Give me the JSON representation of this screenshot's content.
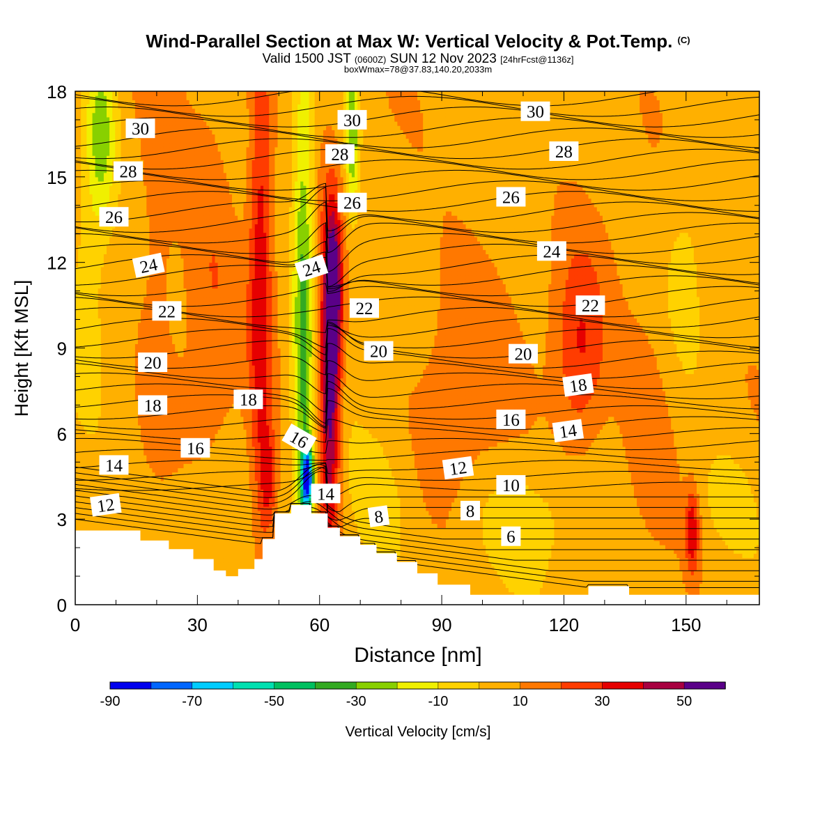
{
  "header": {
    "title": "Wind-Parallel Section at Max W: Vertical Velocity & Pot.Temp.",
    "copyright": "(C)",
    "valid_a": "Valid 1500 JST",
    "valid_zulu": "(0600Z)",
    "valid_b": "SUN 12 Nov 2023",
    "valid_fcst": "[24hrFcst@1136z]",
    "box_info": "boxWmax=78@37.83,140.20,2033m"
  },
  "chart_data": {
    "type": "heatmap",
    "xlabel": "Distance [nm]",
    "ylabel": "Height [Kft MSL]",
    "xlim": [
      0,
      168
    ],
    "ylim": [
      0,
      18
    ],
    "x_ticks": [
      "0",
      "30",
      "60",
      "90",
      "120",
      "150"
    ],
    "y_ticks": [
      "0",
      "3",
      "6",
      "9",
      "12",
      "15",
      "18"
    ],
    "x_tick_values": [
      0,
      30,
      60,
      90,
      120,
      150
    ],
    "y_tick_values": [
      0,
      3,
      6,
      9,
      12,
      15,
      18
    ],
    "colorbar": {
      "label": "Vertical Velocity [cm/s]",
      "tick_labels": [
        "-90",
        "-70",
        "-50",
        "-30",
        "-10",
        "10",
        "30",
        "50"
      ],
      "tick_values": [
        -90,
        -70,
        -50,
        -30,
        -10,
        10,
        30,
        50
      ],
      "bounds": [
        -90,
        -80,
        -70,
        -60,
        -50,
        -40,
        -30,
        -20,
        -10,
        0,
        10,
        20,
        30,
        40,
        50,
        60
      ],
      "colors": [
        "#0000ee",
        "#0066ff",
        "#00ccff",
        "#00e0b0",
        "#00c060",
        "#33aa22",
        "#88d000",
        "#f0f000",
        "#ffd200",
        "#ffb000",
        "#ff7800",
        "#ff3c00",
        "#e60000",
        "#a80040",
        "#5a0088"
      ]
    },
    "terrain": [
      [
        0,
        2.6
      ],
      [
        16,
        2.6
      ],
      [
        16,
        2.25
      ],
      [
        23,
        2.25
      ],
      [
        23,
        1.95
      ],
      [
        29,
        1.95
      ],
      [
        29,
        1.6
      ],
      [
        34,
        1.6
      ],
      [
        34,
        1.2
      ],
      [
        37,
        1.2
      ],
      [
        37,
        1.0
      ],
      [
        40,
        1.0
      ],
      [
        40,
        1.25
      ],
      [
        44,
        1.25
      ],
      [
        44,
        1.6
      ],
      [
        46,
        1.6
      ],
      [
        46,
        2.3
      ],
      [
        49,
        2.3
      ],
      [
        49,
        3.2
      ],
      [
        53,
        3.2
      ],
      [
        53,
        3.5
      ],
      [
        58,
        3.5
      ],
      [
        58,
        3.2
      ],
      [
        62,
        3.2
      ],
      [
        62,
        2.7
      ],
      [
        65,
        2.7
      ],
      [
        65,
        2.4
      ],
      [
        70,
        2.4
      ],
      [
        70,
        2.1
      ],
      [
        74,
        2.1
      ],
      [
        74,
        1.8
      ],
      [
        79,
        1.8
      ],
      [
        79,
        1.5
      ],
      [
        84,
        1.5
      ],
      [
        84,
        1.1
      ],
      [
        89,
        1.1
      ],
      [
        89,
        0.7
      ],
      [
        97,
        0.7
      ],
      [
        97,
        0.35
      ],
      [
        126,
        0.35
      ],
      [
        126,
        0.65
      ],
      [
        136,
        0.65
      ],
      [
        136,
        0.35
      ],
      [
        168,
        0.35
      ]
    ],
    "features": [
      {
        "type": "updraft",
        "x": 62.5,
        "y": 7.6,
        "sx": 1.8,
        "sy": 4.0,
        "amp": 52
      },
      {
        "type": "updraft",
        "x": 63.5,
        "y": 11.0,
        "sx": 1.4,
        "sy": 2.0,
        "amp": 38
      },
      {
        "type": "updraft",
        "x": 45.5,
        "y": 11.5,
        "sx": 2.0,
        "sy": 7.0,
        "amp": 30
      },
      {
        "type": "updraft",
        "x": 47.5,
        "y": 4.3,
        "sx": 1.4,
        "sy": 1.3,
        "amp": 22
      },
      {
        "type": "updraft",
        "x": 124,
        "y": 8.8,
        "sx": 4.5,
        "sy": 2.5,
        "amp": 25
      },
      {
        "type": "updraft",
        "x": 151.5,
        "y": 2.6,
        "sx": 1.2,
        "sy": 1.0,
        "amp": 32
      },
      {
        "type": "updraft",
        "x": 33,
        "y": 11.5,
        "sx": 5,
        "sy": 5,
        "amp": 12
      },
      {
        "type": "updraft",
        "x": 95,
        "y": 8.0,
        "sx": 8,
        "sy": 3.5,
        "amp": 12
      },
      {
        "type": "updraft",
        "x": 140,
        "y": 6.5,
        "sx": 5,
        "sy": 3,
        "amp": 10
      },
      {
        "type": "updraft",
        "x": 20,
        "y": 13.5,
        "sx": 3.5,
        "sy": 5,
        "amp": 10
      },
      {
        "type": "downdraft",
        "x": 56.0,
        "y": 10.0,
        "sx": 1.8,
        "sy": 6.5,
        "amp": -40
      },
      {
        "type": "downdraft",
        "x": 57.0,
        "y": 4.4,
        "sx": 1.0,
        "sy": 0.8,
        "amp": -85
      },
      {
        "type": "downdraft",
        "x": 68,
        "y": 16.5,
        "sx": 1.2,
        "sy": 2.0,
        "amp": -35
      },
      {
        "type": "downdraft",
        "x": 6.5,
        "y": 16.5,
        "sx": 2.5,
        "sy": 2.2,
        "amp": -30
      },
      {
        "type": "downdraft",
        "x": 3,
        "y": 12.5,
        "sx": 3,
        "sy": 4,
        "amp": -10
      },
      {
        "type": "downdraft",
        "x": 75,
        "y": 3.5,
        "sx": 6,
        "sy": 2,
        "amp": -10
      },
      {
        "type": "downdraft",
        "x": 108,
        "y": 3.0,
        "sx": 12,
        "sy": 1.5,
        "amp": -10
      },
      {
        "type": "downdraft",
        "x": 160,
        "y": 3.5,
        "sx": 6,
        "sy": 1.5,
        "amp": -10
      },
      {
        "type": "downdraft",
        "x": 150,
        "y": 12.5,
        "sx": 4,
        "sy": 3,
        "amp": -8
      },
      {
        "type": "downdraft",
        "x": 30,
        "y": 3.0,
        "sx": 6,
        "sy": 1.5,
        "amp": -8
      }
    ],
    "theta_contour_labels": [
      {
        "text": "30",
        "x": 16,
        "y": 16.7,
        "angle": 0
      },
      {
        "text": "30",
        "x": 68,
        "y": 17.0,
        "angle": 0
      },
      {
        "text": "30",
        "x": 113,
        "y": 17.3,
        "angle": 0
      },
      {
        "text": "28",
        "x": 13,
        "y": 15.2,
        "angle": 0
      },
      {
        "text": "28",
        "x": 65,
        "y": 15.8,
        "angle": 0
      },
      {
        "text": "28",
        "x": 120,
        "y": 15.9,
        "angle": 0
      },
      {
        "text": "26",
        "x": 9.5,
        "y": 13.6,
        "angle": 0
      },
      {
        "text": "26",
        "x": 68,
        "y": 14.1,
        "angle": 0
      },
      {
        "text": "26",
        "x": 107,
        "y": 14.3,
        "angle": 0
      },
      {
        "text": "24",
        "x": 18,
        "y": 11.9,
        "angle": -12
      },
      {
        "text": "24",
        "x": 58,
        "y": 11.8,
        "angle": -18
      },
      {
        "text": "24",
        "x": 117,
        "y": 12.4,
        "angle": 0
      },
      {
        "text": "22",
        "x": 22.5,
        "y": 10.3,
        "angle": 0
      },
      {
        "text": "22",
        "x": 71,
        "y": 10.4,
        "angle": 0
      },
      {
        "text": "22",
        "x": 126.5,
        "y": 10.5,
        "angle": 0
      },
      {
        "text": "20",
        "x": 19,
        "y": 8.5,
        "angle": 0
      },
      {
        "text": "20",
        "x": 74.5,
        "y": 8.9,
        "angle": 0
      },
      {
        "text": "20",
        "x": 110,
        "y": 8.8,
        "angle": 0
      },
      {
        "text": "18",
        "x": 19,
        "y": 7.0,
        "angle": 0
      },
      {
        "text": "18",
        "x": 42.5,
        "y": 7.2,
        "angle": 0
      },
      {
        "text": "18",
        "x": 123.5,
        "y": 7.7,
        "angle": -8
      },
      {
        "text": "16",
        "x": 29.5,
        "y": 5.5,
        "angle": 0
      },
      {
        "text": "16",
        "x": 55,
        "y": 5.8,
        "angle": 30
      },
      {
        "text": "16",
        "x": 107,
        "y": 6.5,
        "angle": 0
      },
      {
        "text": "14",
        "x": 9.5,
        "y": 4.9,
        "angle": 0
      },
      {
        "text": "14",
        "x": 61.5,
        "y": 3.9,
        "angle": 0
      },
      {
        "text": "14",
        "x": 121,
        "y": 6.1,
        "angle": -8
      },
      {
        "text": "12",
        "x": 7.5,
        "y": 3.5,
        "angle": -8
      },
      {
        "text": "12",
        "x": 94,
        "y": 4.8,
        "angle": -8
      },
      {
        "text": "10",
        "x": 107,
        "y": 4.2,
        "angle": 0
      },
      {
        "text": "8",
        "x": 74.5,
        "y": 3.1,
        "angle": -8
      },
      {
        "text": "8",
        "x": 97,
        "y": 3.3,
        "angle": 0
      },
      {
        "text": "6",
        "x": 107,
        "y": 2.4,
        "angle": 0
      }
    ]
  }
}
